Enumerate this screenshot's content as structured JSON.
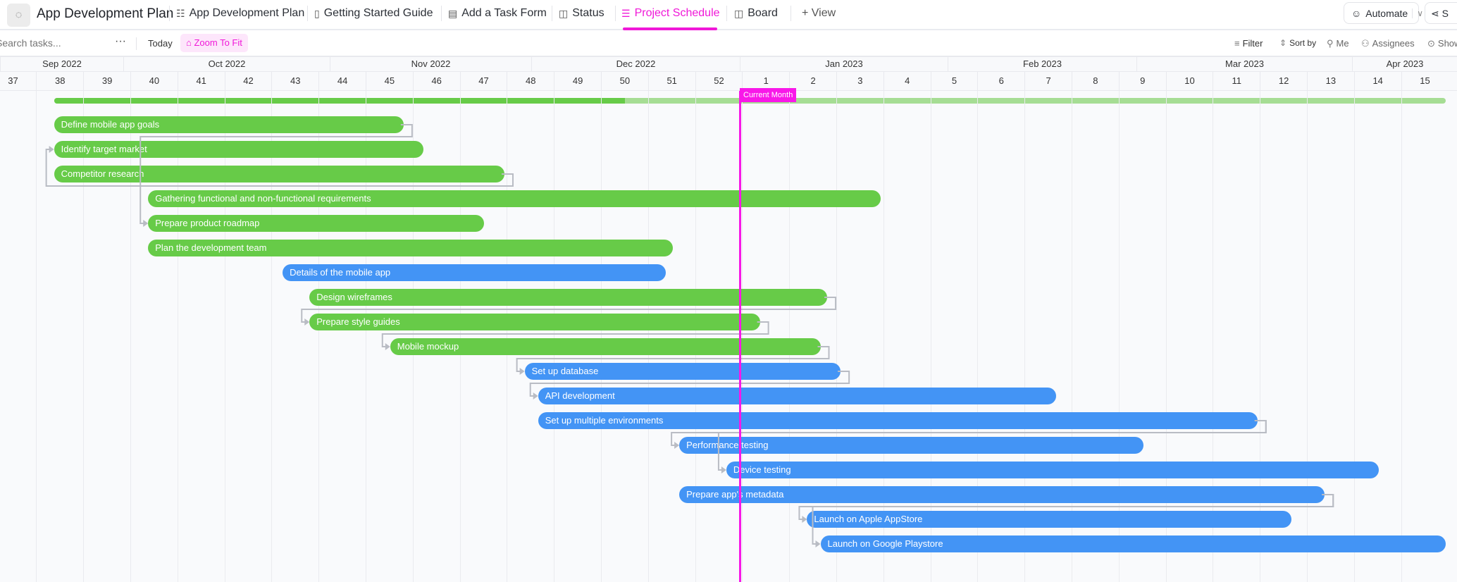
{
  "header": {
    "space_icon": "spinner-icon",
    "title": "App Development Plan",
    "tabs": [
      {
        "label": "App Development Plan",
        "icon": "list-icon",
        "active": false
      },
      {
        "label": "Getting Started Guide",
        "icon": "doc-icon",
        "active": false
      },
      {
        "label": "Add a Task Form",
        "icon": "form-icon",
        "active": false
      },
      {
        "label": "Status",
        "icon": "board-icon",
        "active": false
      },
      {
        "label": "Project Schedule",
        "icon": "gantt-icon",
        "active": true
      },
      {
        "label": "Board",
        "icon": "board-icon",
        "active": false
      }
    ],
    "add_view": "+ View",
    "automate": "Automate",
    "share": "S"
  },
  "toolbar": {
    "search_placeholder": "Search tasks...",
    "more": "···",
    "today": "Today",
    "zoom_to_fit": "Zoom To Fit",
    "filter": "Filter",
    "sort_by": "Sort by",
    "me": "Me",
    "assignees": "Assignees",
    "show": "Show"
  },
  "timeline": {
    "months": [
      "Sep 2022",
      "Oct 2022",
      "Nov 2022",
      "Dec 2022",
      "Jan 2023",
      "Feb 2023",
      "Mar 2023",
      "Apr 2023"
    ],
    "weeks": [
      "37",
      "38",
      "39",
      "40",
      "41",
      "42",
      "43",
      "44",
      "45",
      "46",
      "47",
      "48",
      "49",
      "50",
      "51",
      "52",
      "1",
      "2",
      "3",
      "4",
      "5",
      "6",
      "7",
      "8",
      "9",
      "10",
      "11",
      "12",
      "13",
      "14",
      "15"
    ],
    "current_marker": "Current Month",
    "current_marker_color": "#f818e8"
  },
  "colors": {
    "green": "#67cb48",
    "blue": "#4394f5",
    "summary_track": "#a6dd94"
  },
  "summary": {
    "start": "2022-09-21",
    "end": "2023-04-16",
    "progress_percent": 41
  },
  "tasks": [
    {
      "name": "Define mobile app goals",
      "start": "2022-09-21",
      "end": "2022-11-12",
      "color": "green"
    },
    {
      "name": "Identify target market",
      "start": "2022-09-21",
      "end": "2022-11-15",
      "color": "green"
    },
    {
      "name": "Competitor research",
      "start": "2022-09-21",
      "end": "2022-11-27",
      "color": "green"
    },
    {
      "name": "Gathering functional and non-functional requirements",
      "start": "2022-10-05",
      "end": "2023-01-22",
      "color": "green"
    },
    {
      "name": "Prepare product roadmap",
      "start": "2022-10-05",
      "end": "2022-11-24",
      "color": "green"
    },
    {
      "name": "Plan the development team",
      "start": "2022-10-05",
      "end": "2022-12-22",
      "color": "green"
    },
    {
      "name": "Details of the mobile app",
      "start": "2022-10-25",
      "end": "2022-12-21",
      "color": "blue"
    },
    {
      "name": "Design wireframes",
      "start": "2022-10-29",
      "end": "2023-01-14",
      "color": "green"
    },
    {
      "name": "Prepare style guides",
      "start": "2022-10-29",
      "end": "2023-01-04",
      "color": "green"
    },
    {
      "name": "Mobile mockup",
      "start": "2022-11-10",
      "end": "2023-01-13",
      "color": "green"
    },
    {
      "name": "Set up database",
      "start": "2022-11-30",
      "end": "2023-01-16",
      "color": "blue"
    },
    {
      "name": "API development",
      "start": "2022-12-02",
      "end": "2023-02-17",
      "color": "blue"
    },
    {
      "name": "Set up multiple environments",
      "start": "2022-12-02",
      "end": "2023-03-19",
      "color": "blue"
    },
    {
      "name": "Performance testing",
      "start": "2022-12-23",
      "end": "2023-03-02",
      "color": "blue"
    },
    {
      "name": "Device testing",
      "start": "2022-12-30",
      "end": "2023-04-06",
      "color": "blue"
    },
    {
      "name": "Prepare app's metadata",
      "start": "2022-12-23",
      "end": "2023-03-29",
      "color": "blue"
    },
    {
      "name": "Launch on Apple AppStore",
      "start": "2023-01-11",
      "end": "2023-03-24",
      "color": "blue"
    },
    {
      "name": "Launch on Google Playstore",
      "start": "2023-01-13",
      "end": "2023-04-16",
      "color": "blue"
    }
  ],
  "dependencies": [
    [
      0,
      4
    ],
    [
      2,
      1
    ],
    [
      7,
      8
    ],
    [
      8,
      9
    ],
    [
      9,
      10
    ],
    [
      10,
      11
    ],
    [
      12,
      13
    ],
    [
      12,
      14
    ],
    [
      15,
      16
    ],
    [
      15,
      17
    ]
  ]
}
